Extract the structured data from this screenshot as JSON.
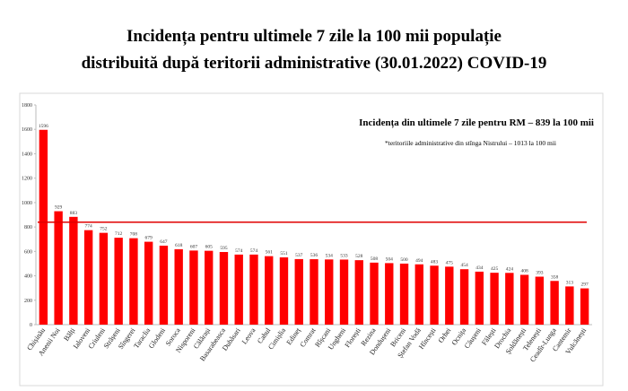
{
  "chart_data": {
    "type": "bar",
    "title": [
      "Incidența pentru ultimele 7 zile la 100 mii populație",
      "distribuită după teritorii  administrative (30.01.2022) COVID-19"
    ],
    "annotations": [
      "Incidența din ultimele 7 zile pentru RM – 839 la 100 mii",
      "*teritoriile administrative din stînga Nistrului – 1013 la 100 mii"
    ],
    "reference_line": 839,
    "color": "#ff0000",
    "categories": [
      "Chișinău",
      "Anenii Noi",
      "Bălți",
      "Ialoveni",
      "Criuleni",
      "Strășeni",
      "Sîngerei",
      "Taraclia",
      "Glodeni",
      "Soroca",
      "Nisporeni",
      "Călărași",
      "Basarabeasca",
      "Dubăsari",
      "Leova",
      "Cahul",
      "Cimișlia",
      "Edineț",
      "Comrat",
      "Rîșcani",
      "Ungheni",
      "Florești",
      "Rezina",
      "Dondușeni",
      "Briceni",
      "Ștefan Vodă",
      "Hîncești",
      "Orhei",
      "Ocnița",
      "Căușeni",
      "Fălești",
      "Drochia",
      "Șoldănești",
      "Telenești",
      "Ceadîr-Lunga",
      "Cantemir",
      "Vulcănești"
    ],
    "values": [
      1596,
      929,
      883,
      774,
      752,
      712,
      708,
      679,
      647,
      618,
      607,
      605,
      595,
      574,
      574,
      561,
      551,
      537,
      536,
      534,
      533,
      528,
      508,
      504,
      500,
      494,
      483,
      475,
      454,
      434,
      425,
      424,
      408,
      393,
      358,
      313,
      297
    ],
    "ylim": [
      0,
      1800
    ],
    "yticks": [
      0,
      200,
      400,
      600,
      800,
      1000,
      1200,
      1400,
      1600,
      1800
    ]
  }
}
